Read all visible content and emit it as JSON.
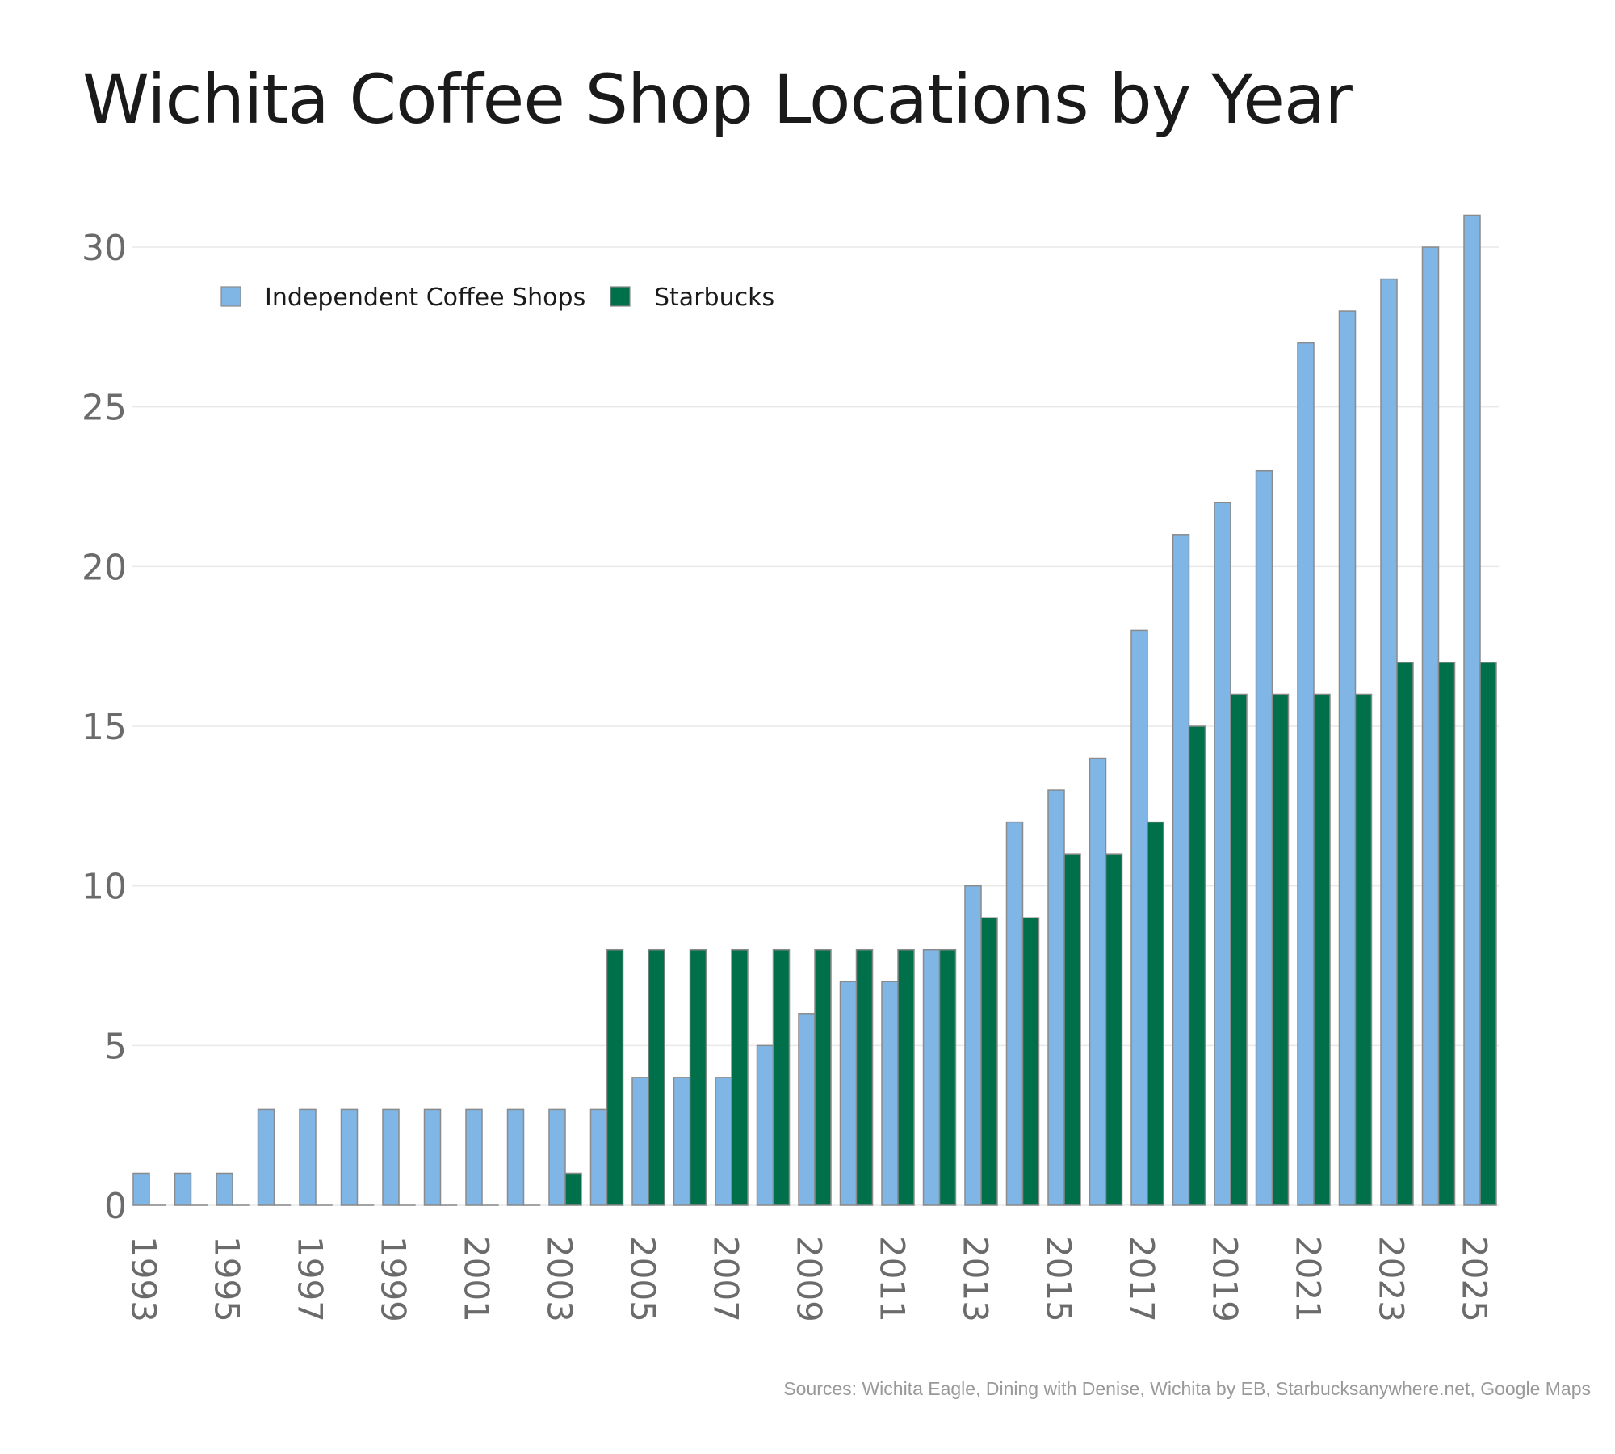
{
  "chart_data": {
    "type": "bar",
    "title": "Wichita Coffee Shop Locations by Year",
    "source_note": "Sources: Wichita Eagle, Dining with Denise, Wichita by EB, Starbucksanywhere.net, Google Maps",
    "categories": [
      1993,
      1994,
      1995,
      1996,
      1997,
      1998,
      1999,
      2000,
      2001,
      2002,
      2003,
      2004,
      2005,
      2006,
      2007,
      2008,
      2009,
      2010,
      2011,
      2012,
      2013,
      2014,
      2015,
      2016,
      2017,
      2018,
      2019,
      2020,
      2021,
      2022,
      2023,
      2024,
      2025
    ],
    "x_tick_labels": [
      "1993",
      "1995",
      "1997",
      "1999",
      "2001",
      "2003",
      "2005",
      "2007",
      "2009",
      "2011",
      "2013",
      "2015",
      "2017",
      "2019",
      "2021",
      "2023",
      "2025"
    ],
    "y_tick_labels": [
      "0",
      "5",
      "10",
      "15",
      "20",
      "25",
      "30"
    ],
    "ylim": [
      0,
      32
    ],
    "grid": true,
    "legend": "top-left",
    "series": [
      {
        "name": "Independent Coffee Shops",
        "color": "#7fb6e6",
        "values": [
          1,
          1,
          1,
          3,
          3,
          3,
          3,
          3,
          3,
          3,
          3,
          3,
          4,
          4,
          4,
          5,
          6,
          7,
          7,
          8,
          10,
          12,
          13,
          14,
          18,
          21,
          22,
          23,
          27,
          28,
          29,
          30,
          31
        ]
      },
      {
        "name": "Starbucks",
        "color": "#00704a",
        "values": [
          0,
          0,
          0,
          0,
          0,
          0,
          0,
          0,
          0,
          0,
          1,
          8,
          8,
          8,
          8,
          8,
          8,
          8,
          8,
          8,
          9,
          9,
          11,
          11,
          12,
          15,
          16,
          16,
          16,
          16,
          17,
          17,
          17
        ]
      }
    ]
  }
}
